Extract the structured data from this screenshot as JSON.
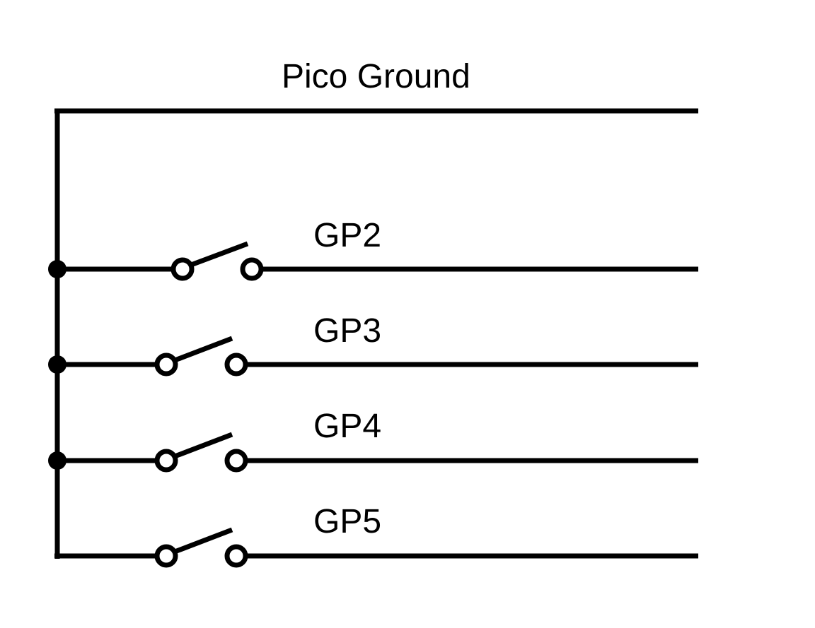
{
  "diagram": {
    "ground_label": "Pico Ground",
    "pins": [
      {
        "label": "GP2"
      },
      {
        "label": "GP3"
      },
      {
        "label": "GP4"
      },
      {
        "label": "GP5"
      }
    ]
  },
  "colors": {
    "line": "#000000",
    "background": "#ffffff"
  }
}
